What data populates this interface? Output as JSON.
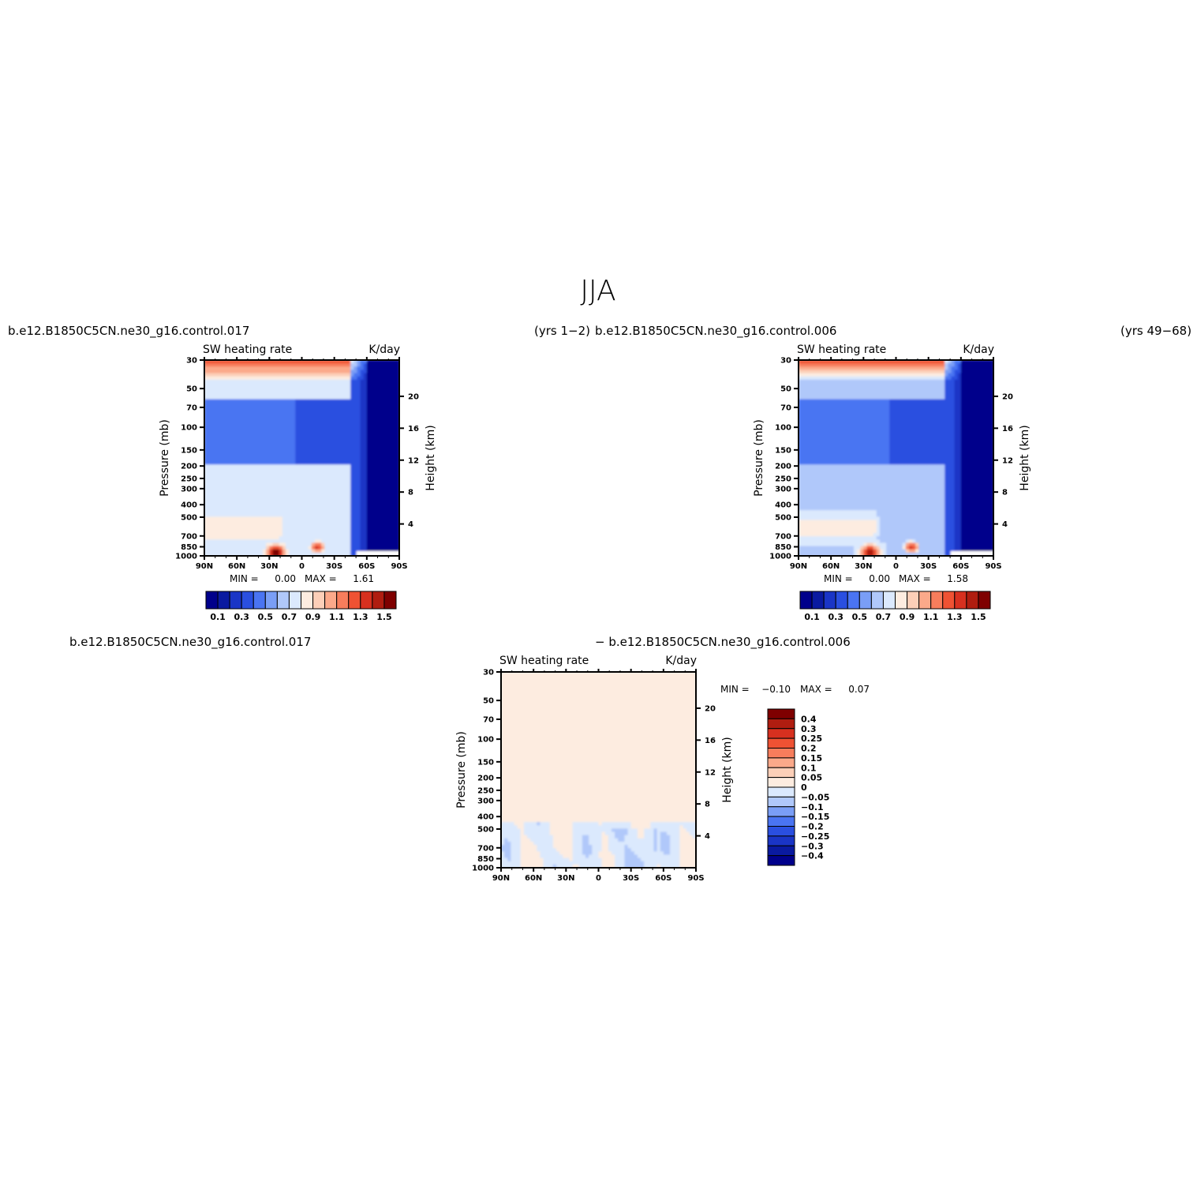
{
  "figure": {
    "title": "JJA",
    "panel_a_left": "b.e12.B1850C5CN.ne30_g16.control.017",
    "panel_a_right": "(yrs  1−2)",
    "panel_b_left": "b.e12.B1850C5CN.ne30_g16.control.006",
    "panel_b_right": "(yrs  49−68)",
    "diff_left": "b.e12.B1850C5CN.ne30_g16.control.017",
    "diff_right": "−  b.e12.B1850C5CN.ne30_g16.control.006"
  },
  "colors": {
    "abs_levels": [
      "#00008b",
      "#0a1aa0",
      "#1a35c6",
      "#2a4fe0",
      "#4a74f2",
      "#7a9ef6",
      "#b0c8fa",
      "#dbe9fd",
      "#fdece0",
      "#fccfb8",
      "#fba98a",
      "#f77d5c",
      "#ef5233",
      "#d7301f",
      "#b01d10",
      "#7f0000"
    ],
    "diff_levels": [
      "#00008b",
      "#0a1aa0",
      "#1a35c6",
      "#2a4fe0",
      "#4a74f2",
      "#7a9ef6",
      "#b0c8fa",
      "#dbe9fd",
      "#fdece0",
      "#fccfb8",
      "#fba98a",
      "#f77d5c",
      "#ef5233",
      "#d7301f",
      "#b01d10",
      "#7f0000"
    ]
  },
  "chart_data": [
    {
      "type": "heatmap",
      "subtitle_left": "SW  heating  rate",
      "subtitle_right": "K/day",
      "ylabel": "Pressure  (mb)",
      "ylabel_right": "Height  (km)",
      "x_ticks": [
        "90N",
        "60N",
        "30N",
        "0",
        "30S",
        "60S",
        "90S"
      ],
      "y_ticks": [
        "30",
        "50",
        "70",
        "100",
        "150",
        "200",
        "250",
        "300",
        "400",
        "500",
        "700",
        "850",
        "1000"
      ],
      "y_ticks_right": [
        "20",
        "16",
        "12",
        "8",
        "4"
      ],
      "stats": {
        "min_label": "MIN  =",
        "min": "0.00",
        "max_label": "MAX  =",
        "max": "1.61"
      },
      "colorbar_labels": [
        "0.1",
        "0.3",
        "0.5",
        "0.7",
        "0.9",
        "1.1",
        "1.3",
        "1.5"
      ],
      "range": [
        0.0,
        1.61
      ]
    },
    {
      "type": "heatmap",
      "subtitle_left": "SW  heating  rate",
      "subtitle_right": "K/day",
      "ylabel": "Pressure  (mb)",
      "ylabel_right": "Height  (km)",
      "x_ticks": [
        "90N",
        "60N",
        "30N",
        "0",
        "30S",
        "60S",
        "90S"
      ],
      "y_ticks": [
        "30",
        "50",
        "70",
        "100",
        "150",
        "200",
        "250",
        "300",
        "400",
        "500",
        "700",
        "850",
        "1000"
      ],
      "y_ticks_right": [
        "20",
        "16",
        "12",
        "8",
        "4"
      ],
      "stats": {
        "min_label": "MIN  =",
        "min": "0.00",
        "max_label": "MAX  =",
        "max": "1.58"
      },
      "colorbar_labels": [
        "0.1",
        "0.3",
        "0.5",
        "0.7",
        "0.9",
        "1.1",
        "1.3",
        "1.5"
      ],
      "range": [
        0.0,
        1.58
      ]
    },
    {
      "type": "heatmap",
      "subtitle_left": "SW  heating  rate",
      "subtitle_right": "K/day",
      "ylabel": "Pressure  (mb)",
      "ylabel_right": "Height  (km)",
      "x_ticks": [
        "90N",
        "60N",
        "30N",
        "0",
        "30S",
        "60S",
        "90S"
      ],
      "y_ticks": [
        "30",
        "50",
        "70",
        "100",
        "150",
        "200",
        "250",
        "300",
        "400",
        "500",
        "700",
        "850",
        "1000"
      ],
      "y_ticks_right": [
        "20",
        "16",
        "12",
        "8",
        "4"
      ],
      "stats": {
        "min_label": "MIN  =",
        "min": "−0.10",
        "max_label": "MAX  =",
        "max": "0.07"
      },
      "colorbar_labels": [
        "0.4",
        "0.3",
        "0.25",
        "0.2",
        "0.15",
        "0.1",
        "0.05",
        "0",
        "−0.05",
        "−0.1",
        "−0.15",
        "−0.2",
        "−0.25",
        "−0.3",
        "−0.4"
      ],
      "range": [
        -0.1,
        0.07
      ]
    }
  ]
}
